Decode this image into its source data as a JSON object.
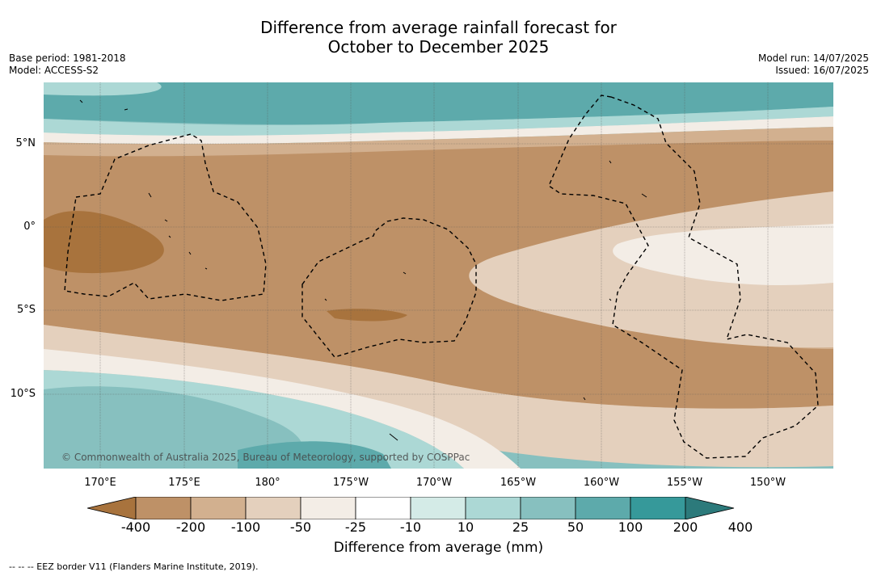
{
  "title": {
    "line1": "Difference from average rainfall forecast for",
    "line2": "October to December 2025"
  },
  "meta": {
    "base_period": "Base period: 1981-2018",
    "model": "Model: ACCESS-S2",
    "model_run": "Model run: 14/07/2025",
    "issued": "Issued: 16/07/2025"
  },
  "map": {
    "lat_labels": [
      "5°N",
      "0°",
      "5°S",
      "10°S"
    ],
    "lon_labels": [
      "170°E",
      "175°E",
      "180°",
      "175°W",
      "170°W",
      "165°W",
      "160°W",
      "155°W",
      "150°W"
    ],
    "copyright": "© Commonwealth of Australia 2025, Bureau of Meteorology, supported by COSPPac"
  },
  "legend": {
    "title": "Difference from average (mm)",
    "ticks": [
      "-400",
      "-200",
      "-100",
      "-50",
      "-25",
      "-10",
      "10",
      "25",
      "50",
      "100",
      "200",
      "400"
    ],
    "colors": [
      "#a8733d",
      "#be9167",
      "#d2b08f",
      "#e4d0bd",
      "#f3ede6",
      "#ffffff",
      "#d4ebe7",
      "#acd8d5",
      "#87c0bf",
      "#5daaab",
      "#36999a",
      "#2c7a7b"
    ]
  },
  "footnote": "-- -- -- EEZ border V11 (Flanders Marine Institute, 2019)."
}
